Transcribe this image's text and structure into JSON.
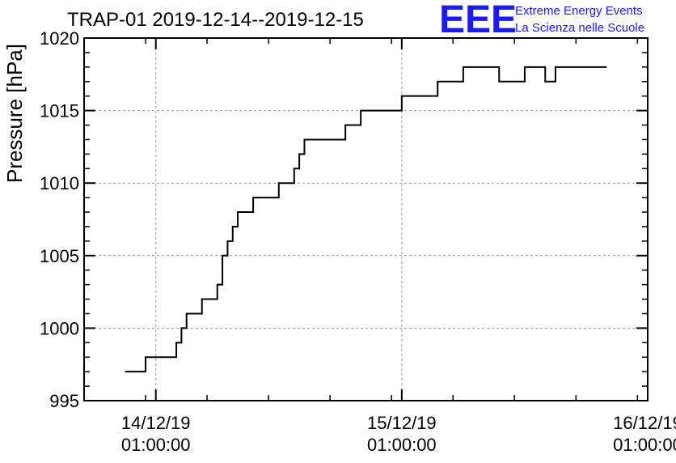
{
  "chart_data": {
    "type": "line",
    "title": "TRAP-01 2019-12-14--2019-12-15",
    "xlabel": "",
    "ylabel": "Pressure [hPa]",
    "ylim": [
      995,
      1020
    ],
    "yticks": [
      995,
      1000,
      1005,
      1010,
      1015,
      1020
    ],
    "ytick_labels": [
      "995",
      "1000",
      "1005",
      "1010",
      "1015",
      "1020"
    ],
    "xlim": [
      "2019-12-13 18:00",
      "2019-12-16 01:00"
    ],
    "xticks": [
      {
        "date": "2019-12-14 01:00",
        "label_date": "14/12/19",
        "label_time": "01:00:00"
      },
      {
        "date": "2019-12-15 01:00",
        "label_date": "15/12/19",
        "label_time": "01:00:00"
      },
      {
        "date": "2019-12-16 01:00",
        "label_date": "16/12/19",
        "label_time": "01:00:00"
      }
    ],
    "grid": true,
    "series": [
      {
        "color": "#000000",
        "step": true,
        "points": [
          [
            "2019-12-13 22:00",
            997
          ],
          [
            "2019-12-14 00:00",
            998
          ],
          [
            "2019-12-14 03:00",
            999
          ],
          [
            "2019-12-14 03:30",
            1000
          ],
          [
            "2019-12-14 04:00",
            1001
          ],
          [
            "2019-12-14 05:30",
            1002
          ],
          [
            "2019-12-14 07:00",
            1003
          ],
          [
            "2019-12-14 07:30",
            1005
          ],
          [
            "2019-12-14 08:00",
            1006
          ],
          [
            "2019-12-14 08:30",
            1007
          ],
          [
            "2019-12-14 09:00",
            1008
          ],
          [
            "2019-12-14 10:30",
            1009
          ],
          [
            "2019-12-14 13:00",
            1010
          ],
          [
            "2019-12-14 14:30",
            1011
          ],
          [
            "2019-12-14 15:00",
            1012
          ],
          [
            "2019-12-14 15:30",
            1013
          ],
          [
            "2019-12-14 19:30",
            1014
          ],
          [
            "2019-12-14 21:00",
            1015
          ],
          [
            "2019-12-15 01:00",
            1016
          ],
          [
            "2019-12-15 04:30",
            1017
          ],
          [
            "2019-12-15 07:00",
            1018
          ],
          [
            "2019-12-15 10:30",
            1017
          ],
          [
            "2019-12-15 13:00",
            1018
          ],
          [
            "2019-12-15 15:00",
            1017
          ],
          [
            "2019-12-15 16:00",
            1018
          ],
          [
            "2019-12-15 21:00",
            1018
          ]
        ]
      }
    ]
  },
  "logo": {
    "mark": "EEE",
    "line1": "Extreme Energy Events",
    "line2": "La Scienza nelle Scuole",
    "color": "#1a1aff"
  }
}
